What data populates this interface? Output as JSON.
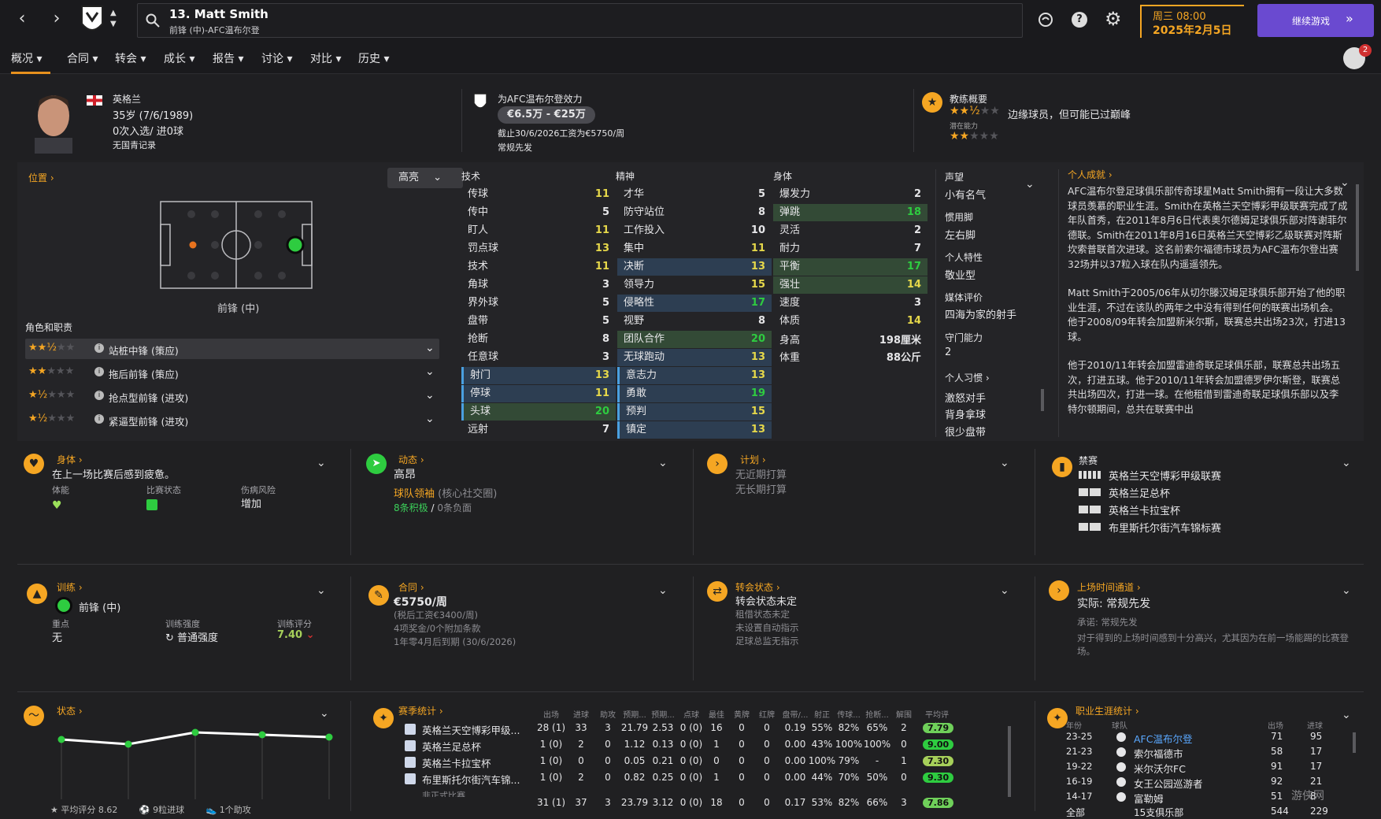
{
  "header": {
    "player_name": "13. Matt Smith",
    "player_sub": "前锋 (中)-AFC温布尔登",
    "date_day": "周三 08:00",
    "date_full": "2025年2月5日",
    "continue_label": "继续游戏",
    "notif_count": "2"
  },
  "tabs": [
    "概况",
    "合同",
    "转会",
    "成长",
    "报告",
    "讨论",
    "对比",
    "历史"
  ],
  "profile": {
    "nation": "英格兰",
    "age": "35岁 (7/6/1989)",
    "caps": "0次入选/ 进0球",
    "youth": "无国青记录",
    "club_line": "为AFC温布尔登效力",
    "value": "€6.5万 - €25万",
    "contract": "截止30/6/2026工资为€5750/周",
    "role": "常规先发",
    "coach_title": "教练概要",
    "coach_desc": "边缘球员，但可能已过巅峰",
    "coach_potential": "潜在能力",
    "coach_stars": 2.5,
    "potential_stars": 2
  },
  "position": {
    "title": "位置",
    "highlight": "高亮",
    "pos_label": "前锋 (中)",
    "roles_title": "角色和职责",
    "roles": [
      {
        "name": "站桩中锋 (策应)",
        "stars": 2.5
      },
      {
        "name": "拖后前锋 (策应)",
        "stars": 2
      },
      {
        "name": "抢点型前锋 (进攻)",
        "stars": 1.5
      },
      {
        "name": "紧逼型前锋 (进攻)",
        "stars": 1.5
      }
    ]
  },
  "attributes": {
    "technical_title": "技术",
    "technical": [
      {
        "n": "传球",
        "v": "11"
      },
      {
        "n": "传中",
        "v": "5"
      },
      {
        "n": "盯人",
        "v": "11"
      },
      {
        "n": "罚点球",
        "v": "13"
      },
      {
        "n": "技术",
        "v": "11"
      },
      {
        "n": "角球",
        "v": "3"
      },
      {
        "n": "界外球",
        "v": "5"
      },
      {
        "n": "盘带",
        "v": "5"
      },
      {
        "n": "抢断",
        "v": "8"
      },
      {
        "n": "任意球",
        "v": "3"
      },
      {
        "n": "射门",
        "v": "13"
      },
      {
        "n": "停球",
        "v": "11"
      },
      {
        "n": "头球",
        "v": "20"
      },
      {
        "n": "远射",
        "v": "7"
      }
    ],
    "mental_title": "精神",
    "mental": [
      {
        "n": "才华",
        "v": "5"
      },
      {
        "n": "防守站位",
        "v": "8"
      },
      {
        "n": "工作投入",
        "v": "10"
      },
      {
        "n": "集中",
        "v": "11"
      },
      {
        "n": "决断",
        "v": "13"
      },
      {
        "n": "领导力",
        "v": "15"
      },
      {
        "n": "侵略性",
        "v": "17"
      },
      {
        "n": "视野",
        "v": "8"
      },
      {
        "n": "团队合作",
        "v": "20"
      },
      {
        "n": "无球跑动",
        "v": "13"
      },
      {
        "n": "意志力",
        "v": "13"
      },
      {
        "n": "勇敢",
        "v": "19"
      },
      {
        "n": "预判",
        "v": "15"
      },
      {
        "n": "镇定",
        "v": "13"
      }
    ],
    "physical_title": "身体",
    "physical": [
      {
        "n": "爆发力",
        "v": "2"
      },
      {
        "n": "弹跳",
        "v": "18"
      },
      {
        "n": "灵活",
        "v": "2"
      },
      {
        "n": "耐力",
        "v": "7"
      },
      {
        "n": "平衡",
        "v": "17"
      },
      {
        "n": "强壮",
        "v": "14"
      },
      {
        "n": "速度",
        "v": "3"
      },
      {
        "n": "体质",
        "v": "14"
      }
    ],
    "height_label": "身高",
    "height": "198厘米",
    "weight_label": "体重",
    "weight": "88公斤"
  },
  "side": {
    "rep_label": "声望",
    "rep": "小有名气",
    "foot_label": "惯用脚",
    "foot": "左右脚",
    "trait_label": "个人特性",
    "trait": "敬业型",
    "media_label": "媒体评价",
    "media": "四海为家的射手",
    "gk_label": "守门能力",
    "gk": "2",
    "habits_label": "个人习惯",
    "habits": [
      "激怒对手",
      "背身拿球",
      "很少盘带"
    ]
  },
  "bio": {
    "title": "个人成就",
    "p1": "AFC温布尔登足球俱乐部传奇球星Matt Smith拥有一段让大多数球员羡慕的职业生涯。Smith在英格兰天空博彩甲级联赛完成了成年队首秀，在2011年8月6日代表奥尔德姆足球俱乐部对阵谢菲尔德联。Smith在2011年8月16日英格兰天空博彩乙级联赛对阵斯坎索普联首次进球。这名前索尔福德市球员为AFC温布尔登出赛32场并以37粒入球在队内遥遥领先。",
    "p2": "Matt Smith于2005/06年从切尔滕汉姆足球俱乐部开始了他的职业生涯，不过在该队的两年之中没有得到任何的联赛出场机会。他于2008/09年转会加盟新米尔斯，联赛总共出场23次，打进13球。",
    "p3": "他于2010/11年转会加盟雷迪奇联足球俱乐部，联赛总共出场五次，打进五球。他于2010/11年转会加盟德罗伊尔斯登，联赛总共出场四次，打进一球。在他租借到雷迪奇联足球俱乐部以及李特尔顿期间，总共在联赛中出"
  },
  "fitness": {
    "title": "身体",
    "desc": "在上一场比赛后感到疲惫。",
    "c1": "体能",
    "c2": "比赛状态",
    "c3": "伤病风险",
    "c3v": "增加"
  },
  "dynamics": {
    "title": "动态",
    "mood": "高昂",
    "role": "球队领袖",
    "role_sub": "(核心社交圈)",
    "pos": "8条积极",
    "sep": "/",
    "neg": "0条负面"
  },
  "plans": {
    "title": "计划",
    "p1": "无近期打算",
    "p2": "无长期打算"
  },
  "bans": {
    "title": "禁赛",
    "items": [
      "英格兰天空博彩甲级联赛",
      "英格兰足总杯",
      "英格兰卡拉宝杯",
      "布里斯托尔街汽车锦标赛"
    ]
  },
  "training": {
    "title": "训练",
    "pos": "前锋 (中)",
    "focus_label": "重点",
    "focus": "无",
    "intensity_label": "训练强度",
    "intensity": "普通强度",
    "rating_label": "训练评分",
    "rating": "7.40"
  },
  "contract": {
    "title": "合同",
    "wage": "€5750/周",
    "tax": "(税后工资€3400/周)",
    "bonus": "4项奖金/0个附加条款",
    "expiry": "1年零4月后到期 (30/6/2026)"
  },
  "transfer": {
    "title": "转会状态",
    "status": "转会状态未定",
    "l1": "租借状态未定",
    "l2": "未设置自动指示",
    "l3": "足球总监无指示"
  },
  "playtime": {
    "title": "上场时间通道",
    "actual": "实际: 常规先发",
    "promised": "承诺: 常规先发",
    "note": "对于得到的上场时间感到十分高兴，尤其因为在前一场能踢的比赛登场。"
  },
  "form": {
    "title": "状态",
    "values": [
      7.2,
      7.0,
      7.5,
      7.4,
      7.3
    ],
    "f1": "平均评分 8.62",
    "f2": "9粒进球",
    "f3": "1个助攻"
  },
  "season": {
    "title": "赛季统计",
    "headers": [
      "出场",
      "进球",
      "助攻",
      "预期...",
      "预期...",
      "点球",
      "最佳",
      "黄牌",
      "红牌",
      "盘带/...",
      "射正",
      "传球...",
      "抢断...",
      "解围",
      "平均评分"
    ],
    "rows": [
      {
        "comp": "英格兰天空博彩甲级...",
        "cells": [
          "28 (1)",
          "33",
          "3",
          "21.79",
          "2.53",
          "0 (0)",
          "16",
          "0",
          "0",
          "0.19",
          "55%",
          "82%",
          "65%",
          "2"
        ],
        "rating": "7.79",
        "col": "#6fd05a"
      },
      {
        "comp": "英格兰足总杯",
        "cells": [
          "1 (0)",
          "2",
          "0",
          "1.12",
          "0.13",
          "0 (0)",
          "1",
          "0",
          "0",
          "0.00",
          "43%",
          "100%",
          "100%",
          "0"
        ],
        "rating": "9.00",
        "col": "#2ecc40"
      },
      {
        "comp": "英格兰卡拉宝杯",
        "cells": [
          "1 (0)",
          "0",
          "0",
          "0.05",
          "0.21",
          "0 (0)",
          "0",
          "0",
          "0",
          "0.00",
          "100%",
          "79%",
          "-",
          "1"
        ],
        "rating": "7.30",
        "col": "#a6d05a"
      },
      {
        "comp": "布里斯托尔街汽车锦...",
        "cells": [
          "1 (0)",
          "2",
          "0",
          "0.82",
          "0.25",
          "0 (0)",
          "1",
          "0",
          "0",
          "0.00",
          "44%",
          "70%",
          "50%",
          "0"
        ],
        "rating": "9.30",
        "col": "#2ecc40"
      }
    ],
    "partial_label": "非正式比赛",
    "total": [
      "31 (1)",
      "37",
      "3",
      "23.79",
      "3.12",
      "0 (0)",
      "18",
      "0",
      "0",
      "0.17",
      "53%",
      "82%",
      "66%",
      "3"
    ],
    "total_rating": "7.86"
  },
  "career": {
    "title": "职业生涯统计",
    "h_year": "年份",
    "h_team": "球队",
    "h_apps": "出场",
    "h_goals": "进球",
    "rows": [
      {
        "y": "23-25",
        "t": "AFC温布尔登",
        "a": "71",
        "g": "95",
        "hl": true
      },
      {
        "y": "21-23",
        "t": "索尔福德市",
        "a": "58",
        "g": "17",
        "hl": false
      },
      {
        "y": "19-22",
        "t": "米尔沃尔FC",
        "a": "91",
        "g": "17",
        "hl": false
      },
      {
        "y": "16-19",
        "t": "女王公园巡游者",
        "a": "92",
        "g": "21",
        "hl": false
      },
      {
        "y": "14-17",
        "t": "富勒姆",
        "a": "51",
        "g": "8",
        "hl": false
      }
    ],
    "total_label": "全部",
    "total_team": "15支俱乐部",
    "total_apps": "544",
    "total_goals": "229"
  },
  "watermark": "游侠网",
  "accent": "#f5a623"
}
